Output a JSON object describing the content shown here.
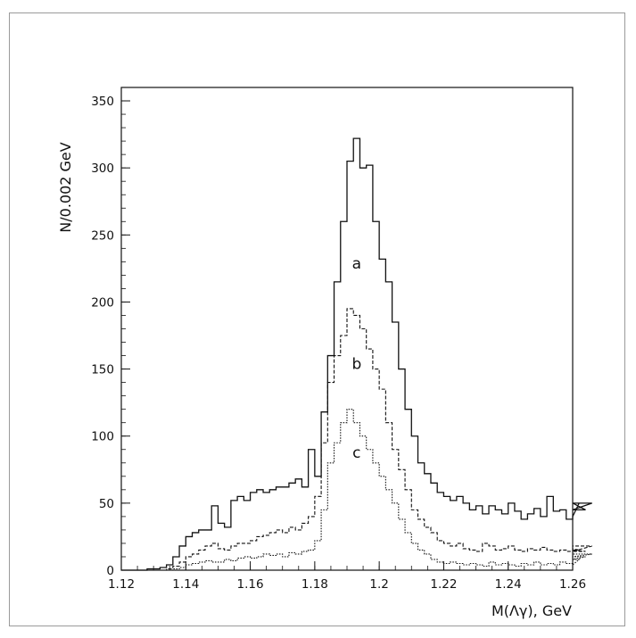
{
  "chart_data": {
    "type": "line",
    "xlabel": "M(Λγ),  GeV",
    "ylabel": "N/0.002 GeV",
    "xlim": [
      1.12,
      1.26
    ],
    "ylim": [
      0,
      360
    ],
    "xticks": [
      1.12,
      1.14,
      1.16,
      1.18,
      1.2,
      1.22,
      1.24,
      1.26
    ],
    "xtick_labels": [
      "1.12",
      "1.14",
      "1.16",
      "1.18",
      "1.2",
      "1.22",
      "1.24",
      "1.26"
    ],
    "yticks": [
      0,
      50,
      100,
      150,
      200,
      250,
      300,
      350
    ],
    "ytick_labels": [
      "0",
      "50",
      "100",
      "150",
      "200",
      "250",
      "300",
      "350"
    ],
    "grid": false,
    "bin_width": 0.002,
    "bin_start": 1.12,
    "series": [
      {
        "name": "a",
        "style": "solid",
        "color": "#111111",
        "label_at": [
          1.193,
          225
        ],
        "values": [
          0,
          0,
          0,
          0,
          1,
          1,
          2,
          4,
          10,
          18,
          25,
          28,
          30,
          30,
          48,
          35,
          32,
          52,
          55,
          52,
          58,
          60,
          58,
          60,
          62,
          62,
          65,
          68,
          62,
          90,
          70,
          118,
          160,
          215,
          260,
          305,
          322,
          300,
          302,
          260,
          232,
          215,
          185,
          150,
          120,
          100,
          80,
          72,
          65,
          58,
          55,
          52,
          55,
          50,
          45,
          48,
          42,
          48,
          45,
          42,
          50,
          44,
          38,
          42,
          46,
          40,
          55,
          44,
          45,
          38,
          40,
          50,
          45,
          50
        ]
      },
      {
        "name": "b",
        "style": "dashed",
        "color": "#111111",
        "label_at": [
          1.193,
          150
        ],
        "values": [
          0,
          0,
          0,
          0,
          0,
          0,
          0,
          1,
          3,
          6,
          10,
          12,
          15,
          18,
          20,
          16,
          15,
          18,
          20,
          20,
          22,
          25,
          26,
          28,
          30,
          28,
          32,
          30,
          35,
          40,
          55,
          95,
          140,
          160,
          175,
          195,
          190,
          180,
          165,
          150,
          135,
          110,
          90,
          75,
          60,
          45,
          38,
          32,
          28,
          22,
          20,
          18,
          20,
          16,
          15,
          14,
          20,
          18,
          15,
          16,
          18,
          15,
          14,
          16,
          15,
          17,
          15,
          14,
          15,
          14,
          16,
          15,
          14,
          18
        ]
      },
      {
        "name": "c",
        "style": "dotted",
        "color": "#111111",
        "label_at": [
          1.193,
          84
        ],
        "values": [
          0,
          0,
          0,
          0,
          0,
          0,
          0,
          0,
          1,
          2,
          4,
          5,
          6,
          7,
          6,
          6,
          8,
          7,
          9,
          10,
          9,
          10,
          12,
          11,
          12,
          10,
          13,
          12,
          14,
          15,
          22,
          45,
          80,
          95,
          110,
          120,
          110,
          100,
          90,
          80,
          70,
          60,
          50,
          38,
          28,
          20,
          15,
          12,
          8,
          6,
          5,
          6,
          5,
          4,
          5,
          4,
          3,
          6,
          4,
          5,
          4,
          3,
          5,
          4,
          6,
          4,
          5,
          4,
          6,
          5,
          4,
          8,
          10,
          12
        ]
      }
    ]
  }
}
